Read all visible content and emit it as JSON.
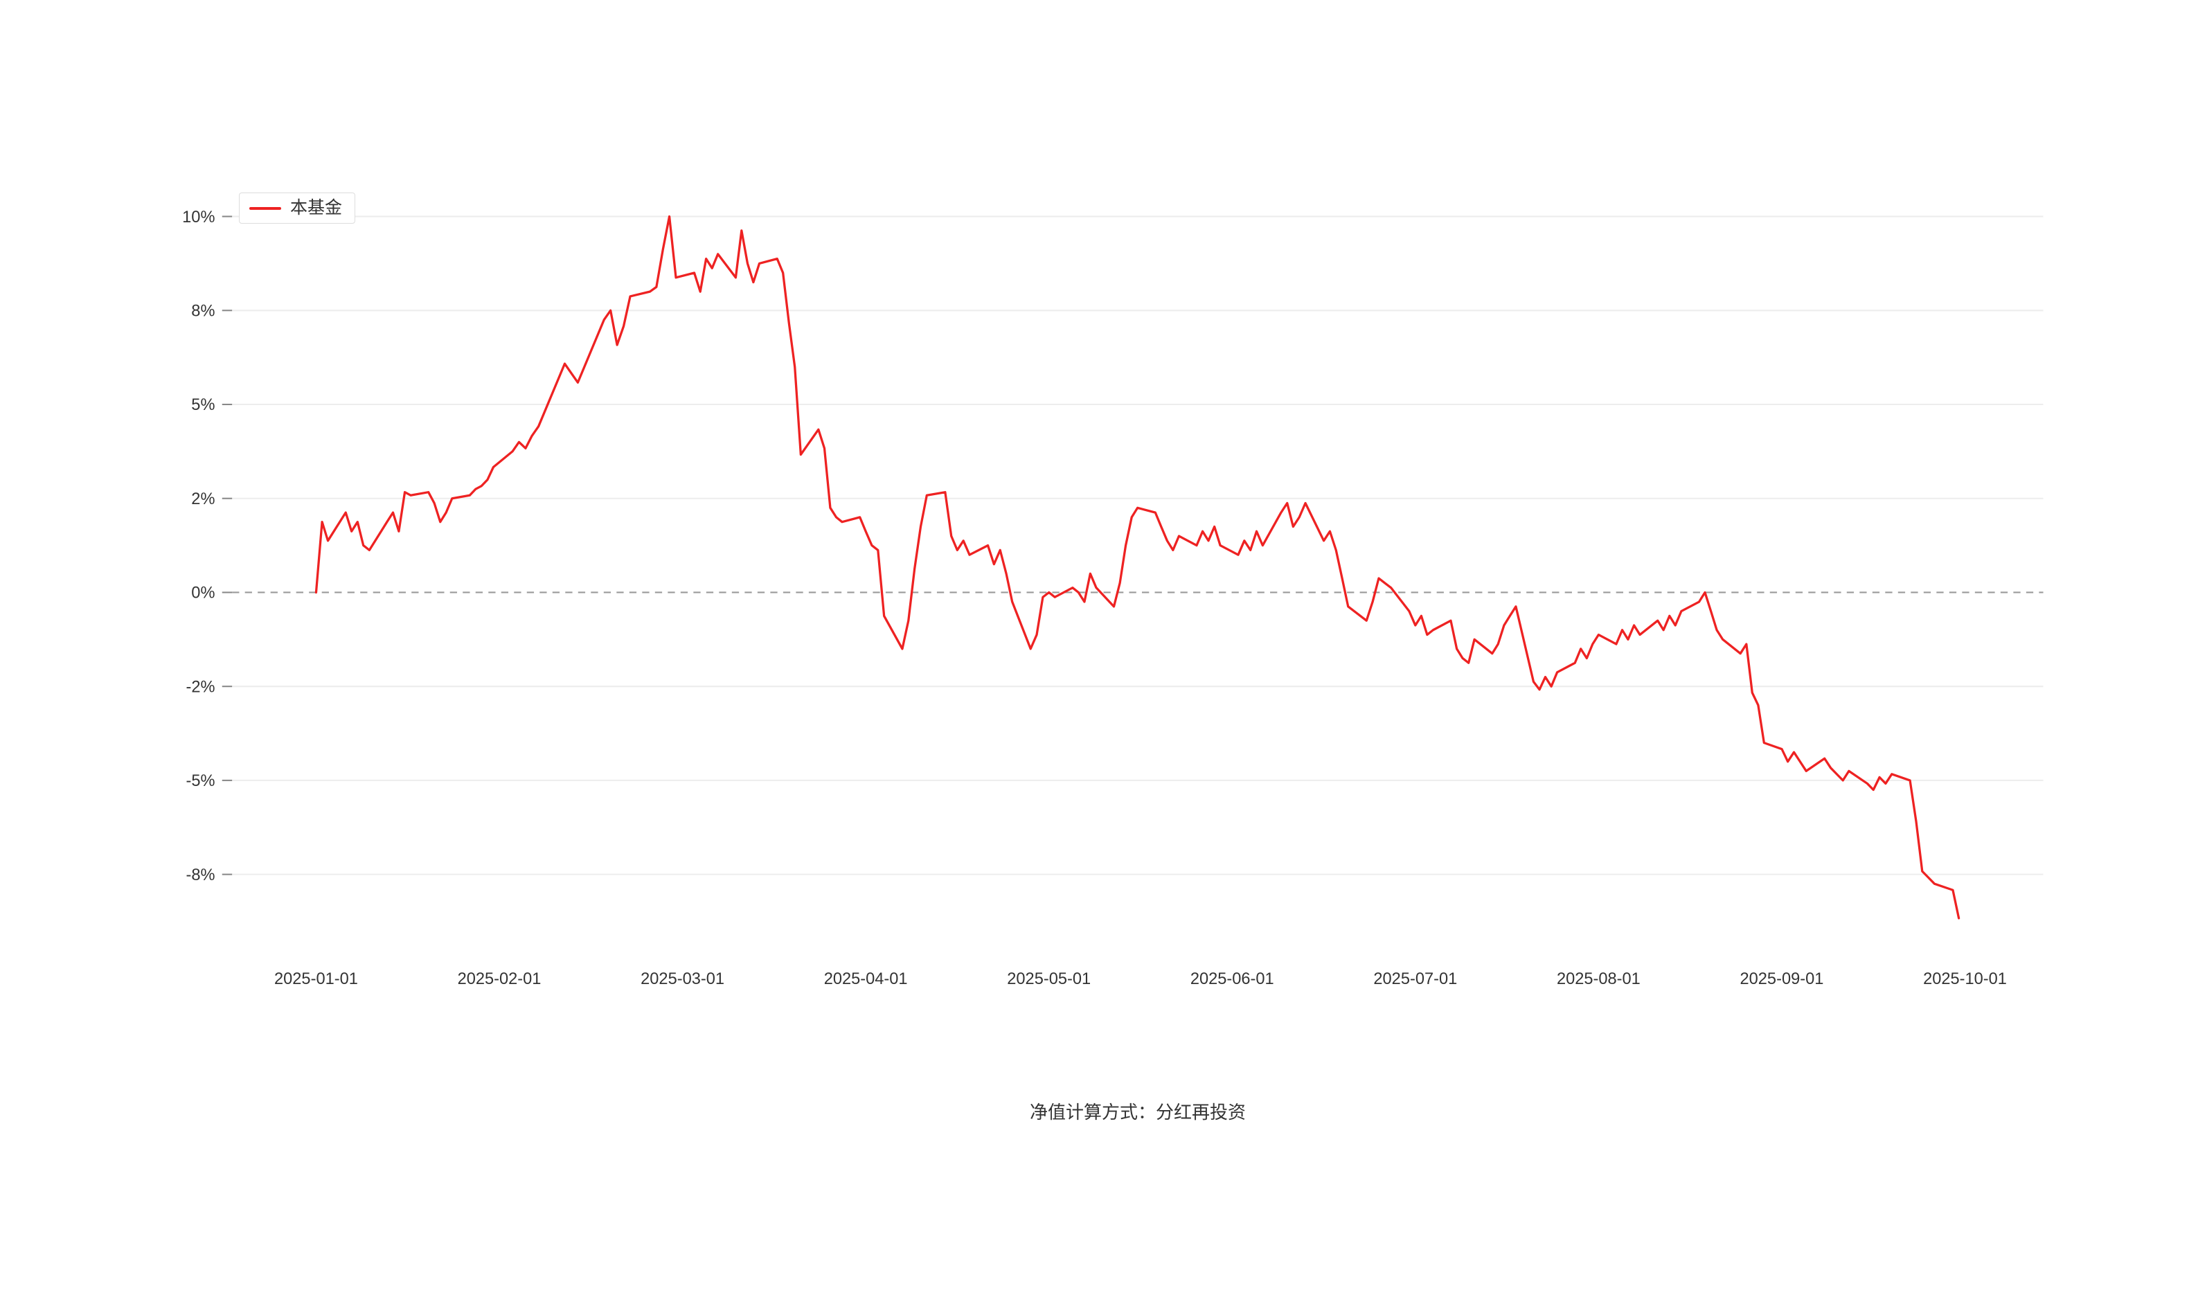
{
  "page": {
    "background": "#ffffff"
  },
  "legend": {
    "items": [
      {
        "label": "本基金",
        "color": "#ee2222"
      }
    ]
  },
  "caption": "净值计算方式：分红再投资",
  "chart_data": {
    "type": "line",
    "title": "",
    "xlabel": "",
    "ylabel": "",
    "grid": true,
    "zero_line": "dashed",
    "legend_position": "top-left",
    "unit": "%",
    "y_ticks": [
      "10%",
      "8%",
      "5%",
      "2%",
      "0%",
      "-2%",
      "-5%",
      "-8%"
    ],
    "y_tick_values": [
      10,
      8,
      5,
      2,
      0,
      -2,
      -5,
      -8
    ],
    "x_ticks": [
      "2025-01-01",
      "2025-02-01",
      "2025-03-01",
      "2025-04-01",
      "2025-05-01",
      "2025-06-01",
      "2025-07-01",
      "2025-08-01",
      "2025-09-01",
      "2025-10-01"
    ],
    "series": [
      {
        "name": "本基金",
        "color": "#ee2222",
        "points": [
          [
            "2025-01-01",
            0.0
          ],
          [
            "2025-01-02",
            1.5
          ],
          [
            "2025-01-03",
            1.1
          ],
          [
            "2025-01-06",
            1.7
          ],
          [
            "2025-01-07",
            1.3
          ],
          [
            "2025-01-08",
            1.5
          ],
          [
            "2025-01-09",
            1.0
          ],
          [
            "2025-01-10",
            0.9
          ],
          [
            "2025-01-13",
            1.5
          ],
          [
            "2025-01-14",
            1.7
          ],
          [
            "2025-01-15",
            1.3
          ],
          [
            "2025-01-16",
            2.2
          ],
          [
            "2025-01-17",
            2.1
          ],
          [
            "2025-01-20",
            2.2
          ],
          [
            "2025-01-21",
            1.9
          ],
          [
            "2025-01-22",
            1.5
          ],
          [
            "2025-01-23",
            1.7
          ],
          [
            "2025-01-24",
            2.0
          ],
          [
            "2025-01-27",
            2.1
          ],
          [
            "2025-01-28",
            2.3
          ],
          [
            "2025-01-29",
            2.4
          ],
          [
            "2025-01-30",
            2.6
          ],
          [
            "2025-01-31",
            3.0
          ],
          [
            "2025-02-03",
            3.5
          ],
          [
            "2025-02-04",
            3.8
          ],
          [
            "2025-02-05",
            3.6
          ],
          [
            "2025-02-06",
            4.0
          ],
          [
            "2025-02-07",
            4.3
          ],
          [
            "2025-02-10",
            5.8
          ],
          [
            "2025-02-11",
            6.3
          ],
          [
            "2025-02-12",
            6.0
          ],
          [
            "2025-02-13",
            5.7
          ],
          [
            "2025-02-14",
            6.2
          ],
          [
            "2025-02-17",
            7.7
          ],
          [
            "2025-02-18",
            8.0
          ],
          [
            "2025-02-19",
            6.9
          ],
          [
            "2025-02-20",
            7.5
          ],
          [
            "2025-02-21",
            8.3
          ],
          [
            "2025-02-24",
            8.4
          ],
          [
            "2025-02-25",
            8.5
          ],
          [
            "2025-02-26",
            9.3
          ],
          [
            "2025-02-27",
            10.0
          ],
          [
            "2025-02-28",
            8.7
          ],
          [
            "2025-03-03",
            8.8
          ],
          [
            "2025-03-04",
            8.4
          ],
          [
            "2025-03-05",
            9.1
          ],
          [
            "2025-03-06",
            8.9
          ],
          [
            "2025-03-07",
            9.2
          ],
          [
            "2025-03-10",
            8.7
          ],
          [
            "2025-03-11",
            9.7
          ],
          [
            "2025-03-12",
            9.0
          ],
          [
            "2025-03-13",
            8.6
          ],
          [
            "2025-03-14",
            9.0
          ],
          [
            "2025-03-17",
            9.1
          ],
          [
            "2025-03-18",
            8.8
          ],
          [
            "2025-03-19",
            7.6
          ],
          [
            "2025-03-20",
            6.2
          ],
          [
            "2025-03-21",
            3.4
          ],
          [
            "2025-03-24",
            4.2
          ],
          [
            "2025-03-25",
            3.6
          ],
          [
            "2025-03-26",
            1.8
          ],
          [
            "2025-03-27",
            1.6
          ],
          [
            "2025-03-28",
            1.5
          ],
          [
            "2025-03-31",
            1.6
          ],
          [
            "2025-04-01",
            1.3
          ],
          [
            "2025-04-02",
            1.0
          ],
          [
            "2025-04-03",
            0.9
          ],
          [
            "2025-04-04",
            -0.5
          ],
          [
            "2025-04-07",
            -1.2
          ],
          [
            "2025-04-08",
            -0.6
          ],
          [
            "2025-04-09",
            0.5
          ],
          [
            "2025-04-10",
            1.4
          ],
          [
            "2025-04-11",
            2.1
          ],
          [
            "2025-04-14",
            2.2
          ],
          [
            "2025-04-15",
            1.2
          ],
          [
            "2025-04-16",
            0.9
          ],
          [
            "2025-04-17",
            1.1
          ],
          [
            "2025-04-18",
            0.8
          ],
          [
            "2025-04-21",
            1.0
          ],
          [
            "2025-04-22",
            0.6
          ],
          [
            "2025-04-23",
            0.9
          ],
          [
            "2025-04-24",
            0.4
          ],
          [
            "2025-04-25",
            -0.2
          ],
          [
            "2025-04-28",
            -1.2
          ],
          [
            "2025-04-29",
            -0.9
          ],
          [
            "2025-04-30",
            -0.1
          ],
          [
            "2025-05-01",
            0.0
          ],
          [
            "2025-05-02",
            -0.1
          ],
          [
            "2025-05-05",
            0.1
          ],
          [
            "2025-05-06",
            0.0
          ],
          [
            "2025-05-07",
            -0.2
          ],
          [
            "2025-05-08",
            0.4
          ],
          [
            "2025-05-09",
            0.1
          ],
          [
            "2025-05-12",
            -0.3
          ],
          [
            "2025-05-13",
            0.2
          ],
          [
            "2025-05-14",
            1.0
          ],
          [
            "2025-05-15",
            1.6
          ],
          [
            "2025-05-16",
            1.8
          ],
          [
            "2025-05-19",
            1.7
          ],
          [
            "2025-05-20",
            1.4
          ],
          [
            "2025-05-21",
            1.1
          ],
          [
            "2025-05-22",
            0.9
          ],
          [
            "2025-05-23",
            1.2
          ],
          [
            "2025-05-26",
            1.0
          ],
          [
            "2025-05-27",
            1.3
          ],
          [
            "2025-05-28",
            1.1
          ],
          [
            "2025-05-29",
            1.4
          ],
          [
            "2025-05-30",
            1.0
          ],
          [
            "2025-06-02",
            0.8
          ],
          [
            "2025-06-03",
            1.1
          ],
          [
            "2025-06-04",
            0.9
          ],
          [
            "2025-06-05",
            1.3
          ],
          [
            "2025-06-06",
            1.0
          ],
          [
            "2025-06-09",
            1.7
          ],
          [
            "2025-06-10",
            1.9
          ],
          [
            "2025-06-11",
            1.4
          ],
          [
            "2025-06-12",
            1.6
          ],
          [
            "2025-06-13",
            1.9
          ],
          [
            "2025-06-16",
            1.1
          ],
          [
            "2025-06-17",
            1.3
          ],
          [
            "2025-06-18",
            0.9
          ],
          [
            "2025-06-19",
            0.3
          ],
          [
            "2025-06-20",
            -0.3
          ],
          [
            "2025-06-23",
            -0.6
          ],
          [
            "2025-06-24",
            -0.2
          ],
          [
            "2025-06-25",
            0.3
          ],
          [
            "2025-06-26",
            0.2
          ],
          [
            "2025-06-27",
            0.1
          ],
          [
            "2025-06-30",
            -0.4
          ],
          [
            "2025-07-01",
            -0.7
          ],
          [
            "2025-07-02",
            -0.5
          ],
          [
            "2025-07-03",
            -0.9
          ],
          [
            "2025-07-04",
            -0.8
          ],
          [
            "2025-07-07",
            -0.6
          ],
          [
            "2025-07-08",
            -1.2
          ],
          [
            "2025-07-09",
            -1.4
          ],
          [
            "2025-07-10",
            -1.5
          ],
          [
            "2025-07-11",
            -1.0
          ],
          [
            "2025-07-14",
            -1.3
          ],
          [
            "2025-07-15",
            -1.1
          ],
          [
            "2025-07-16",
            -0.7
          ],
          [
            "2025-07-17",
            -0.5
          ],
          [
            "2025-07-18",
            -0.3
          ],
          [
            "2025-07-21",
            -1.9
          ],
          [
            "2025-07-22",
            -2.1
          ],
          [
            "2025-07-23",
            -1.8
          ],
          [
            "2025-07-24",
            -2.0
          ],
          [
            "2025-07-25",
            -1.7
          ],
          [
            "2025-07-28",
            -1.5
          ],
          [
            "2025-07-29",
            -1.2
          ],
          [
            "2025-07-30",
            -1.4
          ],
          [
            "2025-07-31",
            -1.1
          ],
          [
            "2025-08-01",
            -0.9
          ],
          [
            "2025-08-04",
            -1.1
          ],
          [
            "2025-08-05",
            -0.8
          ],
          [
            "2025-08-06",
            -1.0
          ],
          [
            "2025-08-07",
            -0.7
          ],
          [
            "2025-08-08",
            -0.9
          ],
          [
            "2025-08-11",
            -0.6
          ],
          [
            "2025-08-12",
            -0.8
          ],
          [
            "2025-08-13",
            -0.5
          ],
          [
            "2025-08-14",
            -0.7
          ],
          [
            "2025-08-15",
            -0.4
          ],
          [
            "2025-08-18",
            -0.2
          ],
          [
            "2025-08-19",
            0.0
          ],
          [
            "2025-08-20",
            -0.4
          ],
          [
            "2025-08-21",
            -0.8
          ],
          [
            "2025-08-22",
            -1.0
          ],
          [
            "2025-08-25",
            -1.3
          ],
          [
            "2025-08-26",
            -1.1
          ],
          [
            "2025-08-27",
            -2.2
          ],
          [
            "2025-08-28",
            -2.6
          ],
          [
            "2025-08-29",
            -3.8
          ],
          [
            "2025-09-01",
            -4.0
          ],
          [
            "2025-09-02",
            -4.4
          ],
          [
            "2025-09-03",
            -4.1
          ],
          [
            "2025-09-04",
            -4.4
          ],
          [
            "2025-09-05",
            -4.7
          ],
          [
            "2025-09-08",
            -4.3
          ],
          [
            "2025-09-09",
            -4.6
          ],
          [
            "2025-09-10",
            -4.8
          ],
          [
            "2025-09-11",
            -5.0
          ],
          [
            "2025-09-12",
            -4.7
          ],
          [
            "2025-09-15",
            -5.1
          ],
          [
            "2025-09-16",
            -5.3
          ],
          [
            "2025-09-17",
            -4.9
          ],
          [
            "2025-09-18",
            -5.1
          ],
          [
            "2025-09-19",
            -4.8
          ],
          [
            "2025-09-22",
            -5.0
          ],
          [
            "2025-09-23",
            -6.3
          ],
          [
            "2025-09-24",
            -7.9
          ],
          [
            "2025-09-25",
            -8.1
          ],
          [
            "2025-09-26",
            -8.3
          ],
          [
            "2025-09-29",
            -8.5
          ],
          [
            "2025-09-30",
            -9.4
          ]
        ]
      }
    ]
  }
}
